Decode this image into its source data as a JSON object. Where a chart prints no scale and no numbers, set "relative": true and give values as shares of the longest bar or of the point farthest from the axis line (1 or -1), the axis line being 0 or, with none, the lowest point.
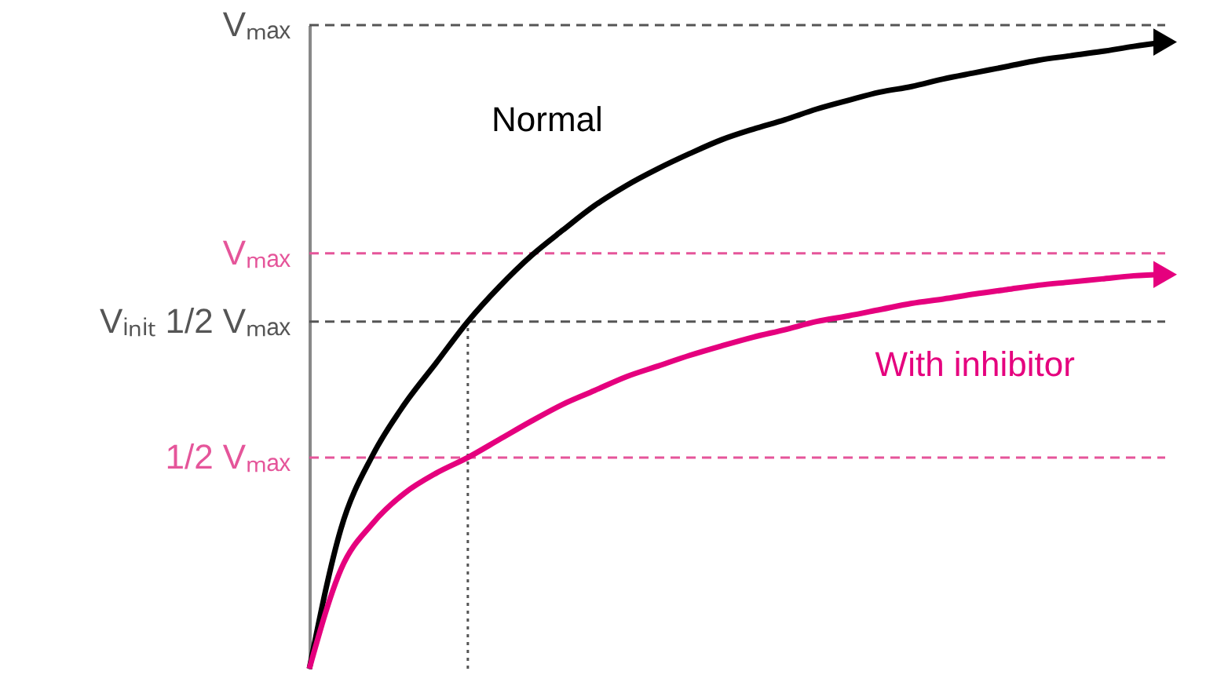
{
  "chart_data": {
    "type": "line",
    "relative": true,
    "categories": [
      null,
      null,
      null,
      null,
      null,
      null,
      null,
      null,
      null,
      null,
      null,
      null,
      null,
      null,
      null,
      null,
      null,
      null,
      null,
      null,
      null,
      null,
      null,
      null,
      null,
      null,
      null,
      null
    ],
    "series": [
      {
        "name": "Normal",
        "color": "#000000",
        "values": [
          0,
          0.224,
          0.341,
          0.422,
          0.488,
          0.554,
          0.61,
          0.659,
          0.7,
          0.739,
          0.771,
          0.798,
          0.822,
          0.844,
          0.861,
          0.876,
          0.893,
          0.907,
          0.92,
          0.929,
          0.941,
          0.951,
          0.961,
          0.971,
          0.978,
          0.985,
          0.993,
          1.0
        ]
      },
      {
        "name": "With inhibitor",
        "color": "#e5007e",
        "values": [
          0,
          0.159,
          0.232,
          0.28,
          0.312,
          0.337,
          0.366,
          0.395,
          0.422,
          0.444,
          0.466,
          0.483,
          0.5,
          0.515,
          0.529,
          0.541,
          0.554,
          0.563,
          0.573,
          0.583,
          0.59,
          0.598,
          0.605,
          0.612,
          0.617,
          0.622,
          0.627,
          0.629
        ]
      }
    ],
    "ref_lines": [
      {
        "axis": "y",
        "value": 1.027,
        "label": "Vₘₐₓ",
        "color": "#555555",
        "line_style": "dashed"
      },
      {
        "axis": "y",
        "value": 0.663,
        "label": "Vₘₐₓ",
        "color": "#e5559a",
        "line_style": "dashed"
      },
      {
        "axis": "y",
        "value": 0.554,
        "label": "Vᵢₙᵢₜ 1/2 Vₘₐₓ",
        "color": "#555555",
        "line_style": "dashed"
      },
      {
        "axis": "y",
        "value": 0.337,
        "label": "1/2 Vₘₐₓ",
        "color": "#e5559a",
        "line_style": "dashed"
      }
    ],
    "marker": "none",
    "line_style": "solid"
  }
}
